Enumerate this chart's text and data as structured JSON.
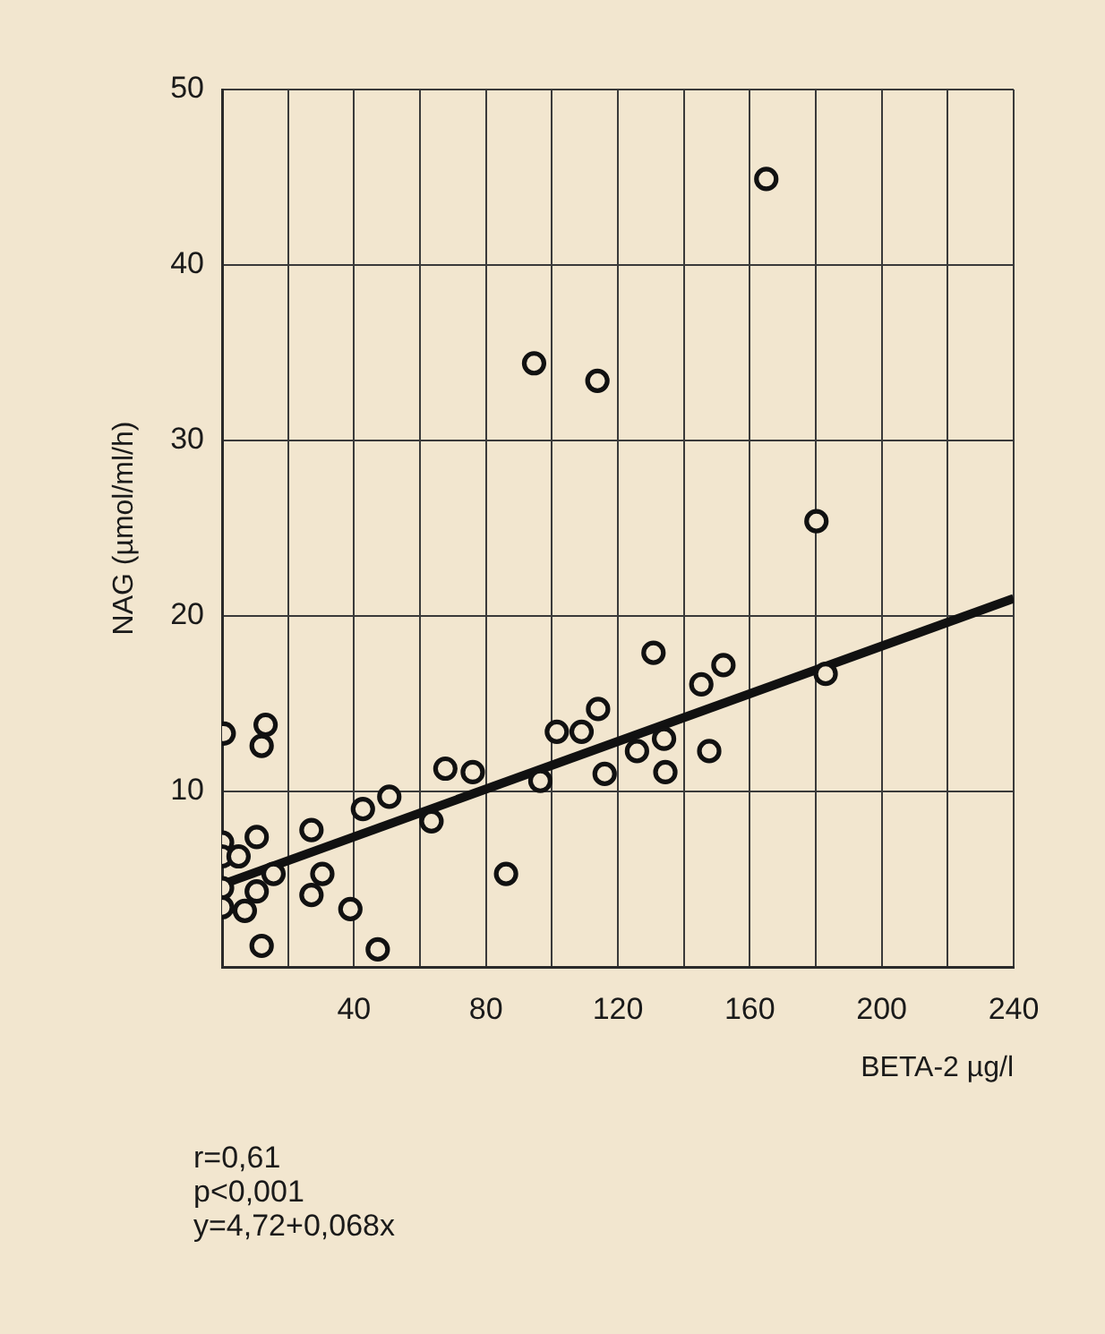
{
  "chart_data": {
    "type": "scatter",
    "xlabel": "BETA-2 µg/l",
    "ylabel": "NAG (µmol/ml/h)",
    "x": [
      165,
      94.6,
      113.8,
      180.2,
      183,
      130.8,
      152,
      145.3,
      114,
      101.5,
      109,
      134,
      125.8,
      147.7,
      134.4,
      116,
      67.7,
      76,
      96.5,
      0.5,
      13.2,
      12,
      50.7,
      42.7,
      63.5,
      27.1,
      86.1,
      0,
      0,
      10.5,
      5,
      15.6,
      0,
      10.5,
      0,
      6.9,
      30.4,
      27.1,
      38.9,
      12,
      47.2
    ],
    "series": [
      {
        "color": "#111111",
        "marker": "circle",
        "values": [
          44.9,
          34.4,
          33.4,
          25.4,
          16.7,
          17.9,
          17.2,
          16.1,
          14.7,
          13.4,
          13.4,
          13.0,
          12.3,
          12.3,
          11.1,
          11.0,
          11.3,
          11.1,
          10.6,
          13.3,
          13.8,
          12.6,
          9.7,
          9.0,
          8.3,
          7.8,
          5.3,
          7.1,
          6.3,
          7.4,
          6.3,
          5.3,
          4.5,
          4.3,
          3.4,
          3.2,
          5.3,
          4.1,
          3.3,
          1.2,
          1.0
        ]
      },
      {
        "type": "line",
        "color": "#111111",
        "marker": "none",
        "x": [
          0,
          240
        ],
        "values": [
          4.7,
          21.0
        ]
      }
    ],
    "xlim": [
      0,
      240
    ],
    "xticks": [
      {
        "value": 20,
        "label": null
      },
      40,
      {
        "value": 60,
        "label": null
      },
      80,
      {
        "value": 100,
        "label": null
      },
      120,
      {
        "value": 140,
        "label": null
      },
      160,
      {
        "value": 180,
        "label": null
      },
      200,
      {
        "value": 220,
        "label": null
      },
      240
    ],
    "ylim": [
      0,
      50
    ],
    "yticks": [
      10,
      20,
      30,
      40,
      50
    ],
    "grid": true,
    "legend": false,
    "annotations": [
      "r=0,61",
      "p<0,001",
      "y=4,72+0,068x"
    ]
  }
}
